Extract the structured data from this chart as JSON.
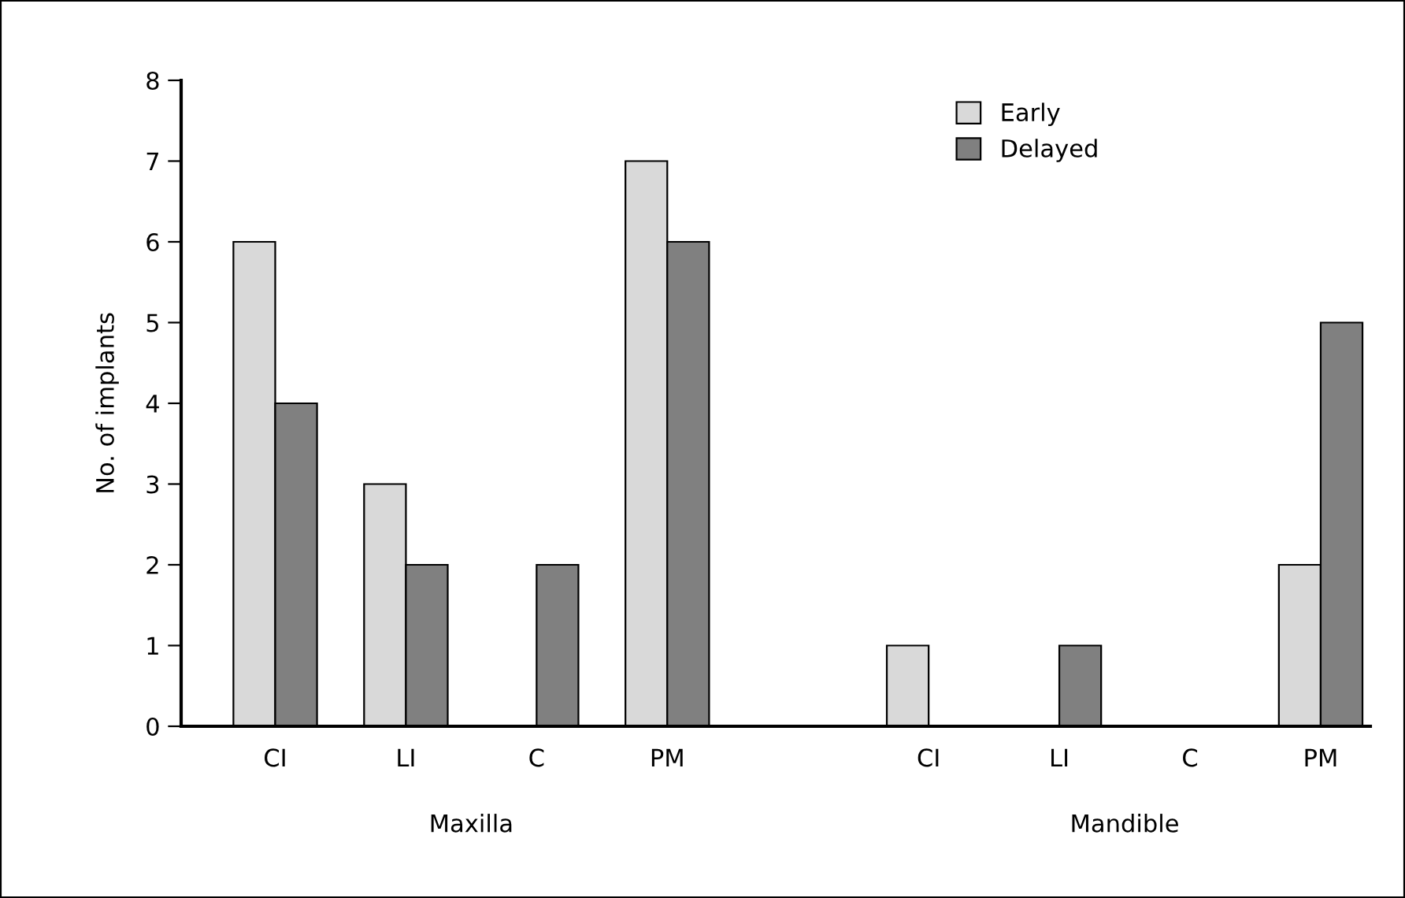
{
  "chart_data": {
    "type": "bar",
    "ylabel": "No. of implants",
    "categories": [
      "CI",
      "LI",
      "C",
      "PM",
      null,
      "CI",
      "LI",
      "C",
      "PM"
    ],
    "series": [
      {
        "name": "Early",
        "color": "#d9d9d9",
        "values": [
          6,
          3,
          null,
          7,
          null,
          1,
          null,
          null,
          2
        ]
      },
      {
        "name": "Delayed",
        "color": "#808080",
        "values": [
          4,
          2,
          2,
          6,
          null,
          null,
          1,
          null,
          5
        ]
      }
    ],
    "ylim": [
      0,
      8
    ],
    "yticks": [
      0,
      1,
      2,
      3,
      4,
      5,
      6,
      7,
      8
    ],
    "grid": false,
    "legend": "top right",
    "annotations": [
      "Maxilla",
      "Mandible"
    ]
  }
}
